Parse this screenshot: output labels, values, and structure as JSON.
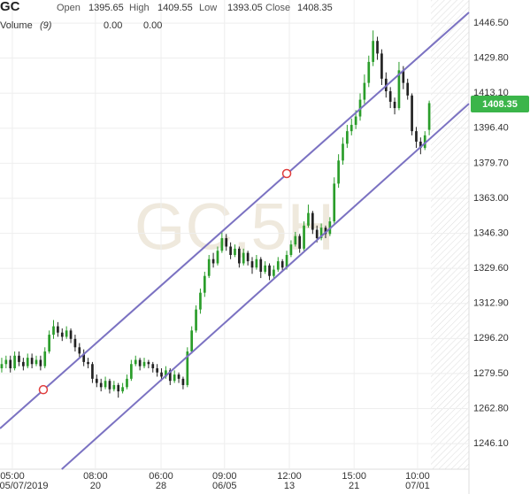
{
  "chart_data": {
    "type": "candlestick",
    "symbol": "GC",
    "watermark": "GC,5H",
    "header_labels": {
      "open": "Open",
      "high": "High",
      "low": "Low",
      "close": "Close"
    },
    "volume": {
      "label": "Volume",
      "period": "(9)",
      "values": [
        "0.00",
        "0.00"
      ],
      "colors": [
        "#e88a8a",
        "#4a6ac0"
      ]
    },
    "up_color": "#2a9d2a",
    "down_color": "#222222",
    "price_box_color": "#3bb54a",
    "channel_color": "#7b72c2",
    "marker_color": "#e03c3c",
    "grid": true,
    "xlim": [
      -0.4,
      108.2
    ],
    "ylim": [
      1233.9,
      1457.5
    ],
    "xticks": [
      {
        "value": 2.46,
        "label": "05:00"
      },
      {
        "value": 21.7,
        "label": "08:00"
      },
      {
        "value": 36.9,
        "label": "06:00"
      },
      {
        "value": 51.6,
        "label": "09:00"
      },
      {
        "value": 66.6,
        "label": "12:00"
      },
      {
        "value": 81.6,
        "label": "15:00"
      },
      {
        "value": 96.3,
        "label": "10:00"
      }
    ],
    "xtick_dates": [
      "05/07/2019",
      "20",
      "28",
      "06/05",
      "13",
      "21",
      "07/01"
    ],
    "yticks": [
      {
        "value": 1446.5,
        "label": "1446.50"
      },
      {
        "value": 1429.8,
        "label": "1429.80"
      },
      {
        "value": 1413.1,
        "label": "1413.10"
      },
      {
        "value": 1396.4,
        "label": "1396.40"
      },
      {
        "value": 1379.7,
        "label": "1379.70"
      },
      {
        "value": 1363,
        "label": "1363.00"
      },
      {
        "value": 1346.3,
        "label": "1346.30"
      },
      {
        "value": 1329.6,
        "label": "1329.60"
      },
      {
        "value": 1312.9,
        "label": "1312.90"
      },
      {
        "value": 1296.2,
        "label": "1296.20"
      },
      {
        "value": 1279.5,
        "label": "1279.50"
      },
      {
        "value": 1262.8,
        "label": "1262.80"
      },
      {
        "value": 1246.1,
        "label": "1246.10"
      }
    ],
    "channel": [
      {
        "x": [
          -0.4,
          108.2
        ],
        "y": [
          1253.3,
          1451.6
        ]
      },
      {
        "x": [
          13.9,
          108.2
        ],
        "y": [
          1233.9,
          1408.1
        ]
      }
    ],
    "markers": {
      "x": [
        9.63,
        66
      ],
      "y": [
        1271.8,
        1374.8
      ]
    },
    "ohlc": [
      [
        1282,
        1287,
        1280,
        1284
      ],
      [
        1284,
        1288,
        1282,
        1286
      ],
      [
        1286,
        1288,
        1280,
        1282
      ],
      [
        1282,
        1290,
        1281,
        1288
      ],
      [
        1288,
        1290,
        1283,
        1285
      ],
      [
        1285,
        1287,
        1281,
        1283
      ],
      [
        1283,
        1289,
        1282,
        1287
      ],
      [
        1287,
        1289,
        1282,
        1284
      ],
      [
        1284,
        1288,
        1283,
        1286
      ],
      [
        1286,
        1288,
        1281,
        1283
      ],
      [
        1283,
        1292,
        1282,
        1290
      ],
      [
        1290,
        1300,
        1289,
        1298
      ],
      [
        1298,
        1305,
        1296,
        1302
      ],
      [
        1302,
        1304,
        1297,
        1299
      ],
      [
        1299,
        1301,
        1295,
        1297
      ],
      [
        1297,
        1302,
        1296,
        1300
      ],
      [
        1300,
        1301,
        1294,
        1296
      ],
      [
        1296,
        1298,
        1290,
        1292
      ],
      [
        1292,
        1294,
        1287,
        1289
      ],
      [
        1289,
        1291,
        1283,
        1285
      ],
      [
        1285,
        1287,
        1282,
        1284
      ],
      [
        1284,
        1285,
        1275,
        1277
      ],
      [
        1277,
        1279,
        1273,
        1275
      ],
      [
        1275,
        1277,
        1271,
        1273
      ],
      [
        1273,
        1278,
        1272,
        1276
      ],
      [
        1276,
        1277,
        1270,
        1272
      ],
      [
        1272,
        1276,
        1271,
        1274
      ],
      [
        1274,
        1275,
        1268,
        1271
      ],
      [
        1271,
        1275,
        1270,
        1273
      ],
      [
        1273,
        1279,
        1272,
        1277
      ],
      [
        1277,
        1286,
        1276,
        1284
      ],
      [
        1284,
        1288,
        1283,
        1286
      ],
      [
        1286,
        1287,
        1281,
        1283
      ],
      [
        1283,
        1287,
        1282,
        1285
      ],
      [
        1285,
        1286,
        1282,
        1284
      ],
      [
        1284,
        1285,
        1280,
        1282
      ],
      [
        1282,
        1284,
        1278,
        1280
      ],
      [
        1280,
        1282,
        1276,
        1278
      ],
      [
        1278,
        1283,
        1277,
        1281
      ],
      [
        1281,
        1282,
        1274,
        1276
      ],
      [
        1276,
        1281,
        1275,
        1279
      ],
      [
        1279,
        1280,
        1275,
        1277
      ],
      [
        1277,
        1278,
        1272,
        1274
      ],
      [
        1274,
        1292,
        1273,
        1290
      ],
      [
        1290,
        1302,
        1289,
        1300
      ],
      [
        1300,
        1312,
        1299,
        1310
      ],
      [
        1310,
        1320,
        1308,
        1318
      ],
      [
        1318,
        1328,
        1316,
        1326
      ],
      [
        1326,
        1336,
        1325,
        1334
      ],
      [
        1334,
        1337,
        1330,
        1332
      ],
      [
        1332,
        1340,
        1331,
        1338
      ],
      [
        1338,
        1347,
        1337,
        1344
      ],
      [
        1344,
        1346,
        1338,
        1340
      ],
      [
        1340,
        1342,
        1334,
        1336
      ],
      [
        1336,
        1341,
        1335,
        1339
      ],
      [
        1339,
        1340,
        1330,
        1332
      ],
      [
        1332,
        1339,
        1331,
        1337
      ],
      [
        1337,
        1338,
        1331,
        1333
      ],
      [
        1333,
        1335,
        1327,
        1330
      ],
      [
        1330,
        1336,
        1329,
        1334
      ],
      [
        1334,
        1335,
        1325,
        1328
      ],
      [
        1328,
        1333,
        1327,
        1331
      ],
      [
        1331,
        1332,
        1324,
        1326
      ],
      [
        1326,
        1331,
        1325,
        1329
      ],
      [
        1329,
        1335,
        1328,
        1333
      ],
      [
        1333,
        1334,
        1328,
        1330
      ],
      [
        1330,
        1338,
        1329,
        1336
      ],
      [
        1336,
        1343,
        1335,
        1341
      ],
      [
        1341,
        1347,
        1340,
        1345
      ],
      [
        1345,
        1346,
        1337,
        1339
      ],
      [
        1339,
        1352,
        1338,
        1350
      ],
      [
        1350,
        1360,
        1349,
        1356
      ],
      [
        1356,
        1357,
        1346,
        1348
      ],
      [
        1348,
        1350,
        1342,
        1344
      ],
      [
        1344,
        1351,
        1343,
        1349
      ],
      [
        1349,
        1350,
        1344,
        1346
      ],
      [
        1346,
        1354,
        1345,
        1352
      ],
      [
        1352,
        1373,
        1351,
        1370
      ],
      [
        1370,
        1384,
        1368,
        1381
      ],
      [
        1381,
        1392,
        1379,
        1389
      ],
      [
        1389,
        1398,
        1387,
        1395
      ],
      [
        1395,
        1401,
        1393,
        1398
      ],
      [
        1398,
        1405,
        1396,
        1402
      ],
      [
        1402,
        1413,
        1400,
        1410
      ],
      [
        1410,
        1422,
        1408,
        1418
      ],
      [
        1418,
        1431,
        1416,
        1428
      ],
      [
        1428,
        1443,
        1426,
        1438
      ],
      [
        1438,
        1440,
        1429,
        1432
      ],
      [
        1432,
        1434,
        1417,
        1420
      ],
      [
        1420,
        1423,
        1411,
        1414
      ],
      [
        1414,
        1416,
        1406,
        1409
      ],
      [
        1409,
        1411,
        1403,
        1406
      ],
      [
        1406,
        1428,
        1405,
        1424
      ],
      [
        1424,
        1426,
        1415,
        1418
      ],
      [
        1418,
        1420,
        1410,
        1412
      ],
      [
        1412,
        1413,
        1393,
        1395
      ],
      [
        1395,
        1397,
        1387,
        1390
      ],
      [
        1390,
        1392,
        1384,
        1387
      ],
      [
        1387,
        1395,
        1386,
        1393
      ],
      [
        1395.65,
        1409.55,
        1393.05,
        1408.35
      ]
    ]
  }
}
